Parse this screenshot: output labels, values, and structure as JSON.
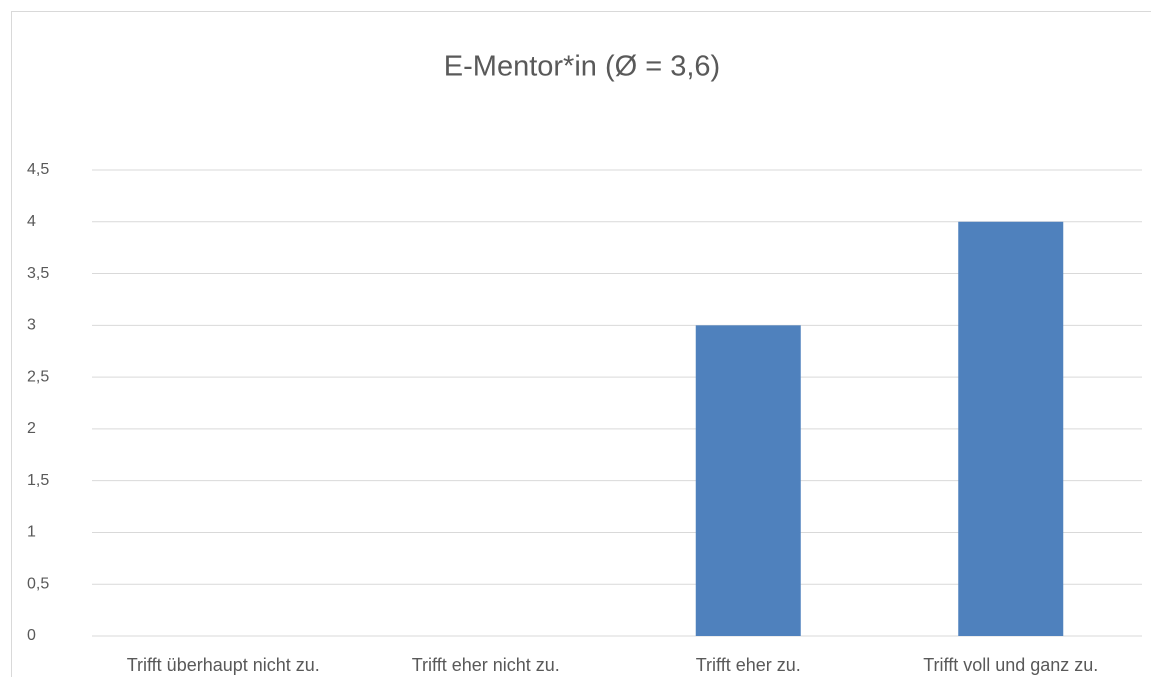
{
  "chart_data": {
    "type": "bar",
    "title": "E-Mentor*in (Ø = 3,6)",
    "categories": [
      "Trifft überhaupt nicht zu.",
      "Trifft eher nicht zu.",
      "Trifft eher zu.",
      "Trifft voll und ganz zu."
    ],
    "values": [
      0,
      0,
      3,
      4
    ],
    "color": "#4f81bd",
    "ylim": [
      0,
      4.5
    ],
    "yticks": [
      0,
      {
        "value": 0.5,
        "label": "0,5"
      },
      1,
      {
        "value": 1.5,
        "label": "1,5"
      },
      2,
      {
        "value": 2.5,
        "label": "2,5"
      },
      3,
      {
        "value": 3.5,
        "label": "3,5"
      },
      4,
      {
        "value": 4.5,
        "label": "4,5"
      }
    ],
    "grid": true
  }
}
